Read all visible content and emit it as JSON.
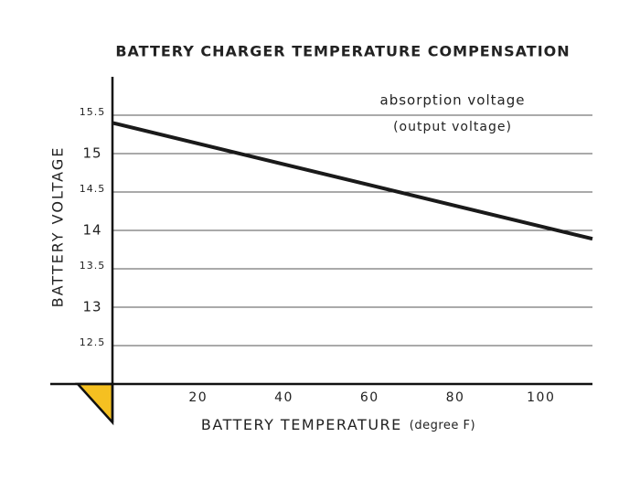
{
  "chart_data": {
    "type": "line",
    "title": "BATTERY CHARGER TEMPERATURE COMPENSATION",
    "ylabel": "BATTERY VOLTAGE",
    "xlabel": "BATTERY TEMPERATURE",
    "xlabel_unit": "(degree F)",
    "annotation": "(output voltage)",
    "x": [
      0,
      112
    ],
    "series": [
      {
        "name": "absorption voltage",
        "color": "#1a1a1a",
        "values": [
          15.4,
          13.89
        ]
      }
    ],
    "xlim": [
      0,
      112
    ],
    "ylim": [
      12,
      16
    ],
    "xticks": [
      20,
      40,
      60,
      80,
      100
    ],
    "yticks": [
      12.5,
      13,
      13.5,
      14,
      14.5,
      15,
      15.5
    ],
    "grid": true
  }
}
